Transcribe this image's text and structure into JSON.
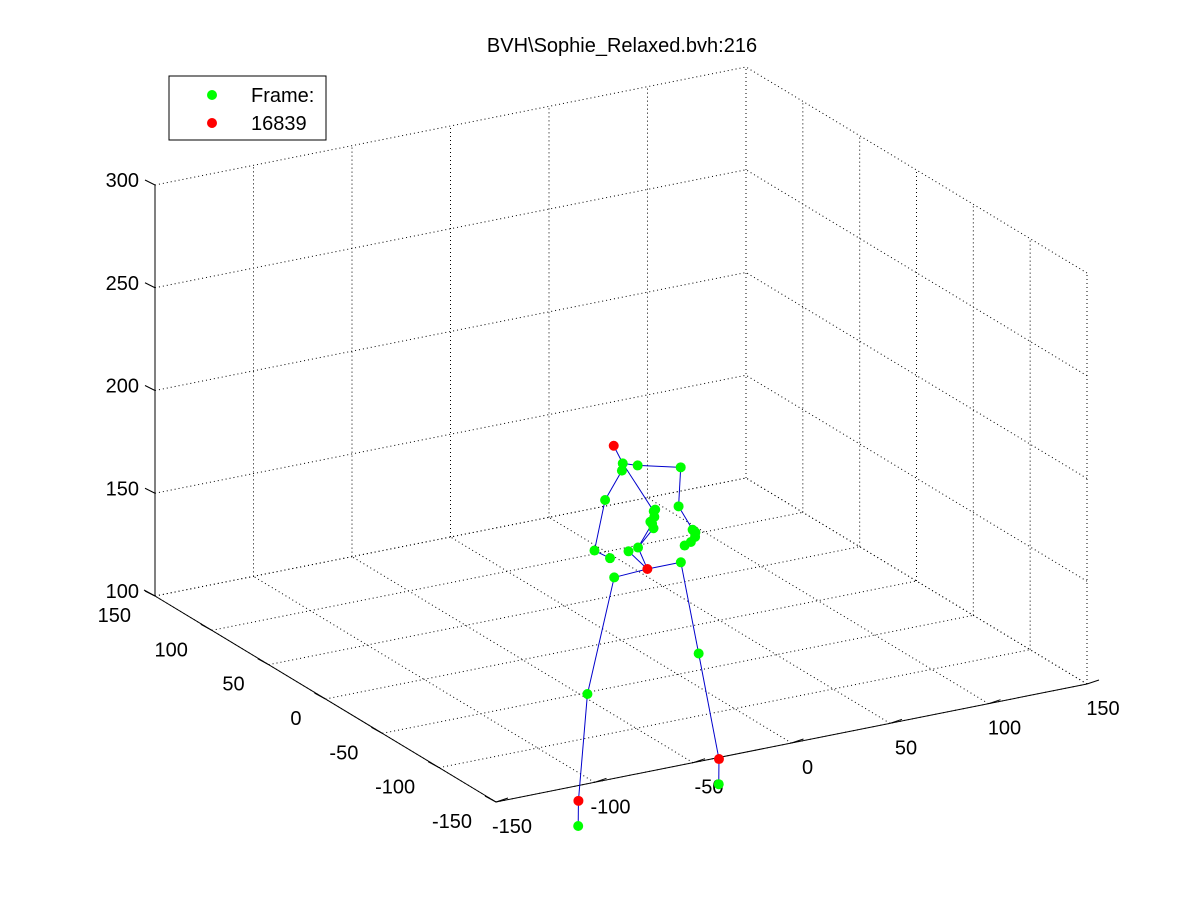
{
  "chart_data": {
    "type": "scatter",
    "subtype": "3d-skeleton",
    "title": "BVH\\Sophie_Relaxed.bvh:216",
    "grid": true,
    "box": true,
    "xlim": [
      -150,
      150
    ],
    "ylim": [
      -150,
      150
    ],
    "zlim": [
      100,
      300
    ],
    "x_ticks": [
      -150,
      -100,
      -50,
      0,
      50,
      100,
      150
    ],
    "y_ticks": [
      -150,
      -100,
      -50,
      0,
      50,
      100,
      150
    ],
    "z_ticks": [
      100,
      150,
      200,
      250,
      300
    ],
    "x_tick_labels": [
      "-150",
      "-100",
      "-50",
      "0",
      "50",
      "100",
      "150"
    ],
    "y_tick_labels": [
      "-150",
      "-100",
      "-50",
      "0",
      "50",
      "100",
      "150"
    ],
    "z_tick_labels": [
      "100",
      "150",
      "200",
      "250",
      "300"
    ],
    "legend": {
      "position": "top-left",
      "entries": [
        {
          "label": "Frame:",
          "color": "#00ff00"
        },
        {
          "label": "16839",
          "color": "#ff0000"
        }
      ]
    },
    "colors": {
      "joint": "#00ff00",
      "end_site": "#ff0000",
      "bone": "#0000cc",
      "grid": "#000000"
    },
    "joints": [
      {
        "name": "hips",
        "pos": [
          3,
          -18,
          140
        ],
        "end": true
      },
      {
        "name": "l-upleg",
        "pos": [
          -15,
          -20,
          140
        ]
      },
      {
        "name": "l-leg",
        "pos": [
          -43,
          -45,
          97
        ]
      },
      {
        "name": "l-foot",
        "pos": [
          -62,
          -70,
          57
        ],
        "end": true
      },
      {
        "name": "l-toe",
        "pos": [
          -65,
          -75,
          47
        ]
      },
      {
        "name": "r-upleg",
        "pos": [
          20,
          -18,
          140
        ]
      },
      {
        "name": "r-leg",
        "pos": [
          25,
          -25,
          97
        ]
      },
      {
        "name": "r-foot",
        "pos": [
          18,
          -55,
          57
        ],
        "end": true
      },
      {
        "name": "r-toe",
        "pos": [
          15,
          -60,
          47
        ]
      },
      {
        "name": "spine",
        "pos": [
          0,
          -15,
          150
        ]
      },
      {
        "name": "spine1",
        "pos": [
          10,
          -10,
          158
        ]
      },
      {
        "name": "spine2",
        "pos": [
          12,
          -8,
          163
        ]
      },
      {
        "name": "neck",
        "pos": [
          -2,
          -5,
          188
        ]
      },
      {
        "name": "head",
        "pos": [
          -6,
          -4,
          197
        ],
        "end": true
      },
      {
        "name": "l-shoulder",
        "pos": [
          -3,
          -6,
          185
        ]
      },
      {
        "name": "l-arm",
        "pos": [
          -15,
          -12,
          175
        ]
      },
      {
        "name": "l-forearm",
        "pos": [
          -25,
          -20,
          155
        ]
      },
      {
        "name": "l-hand",
        "pos": [
          -20,
          -25,
          152
        ]
      },
      {
        "name": "r-shoulder",
        "pos": [
          5,
          -6,
          186
        ]
      },
      {
        "name": "r-arm",
        "pos": [
          28,
          -4,
          180
        ]
      },
      {
        "name": "r-forearm",
        "pos": [
          35,
          10,
          155
        ]
      },
      {
        "name": "r-hand",
        "pos": [
          45,
          15,
          140
        ]
      },
      {
        "name": "r-finger-1",
        "pos": [
          47,
          16,
          138
        ]
      },
      {
        "name": "r-finger-2",
        "pos": [
          48,
          18,
          135
        ]
      },
      {
        "name": "r-finger-3",
        "pos": [
          47,
          20,
          132
        ]
      },
      {
        "name": "r-finger-4",
        "pos": [
          45,
          22,
          130
        ]
      },
      {
        "name": "spine-mid-1",
        "pos": [
          8,
          -12,
          160
        ]
      },
      {
        "name": "spine-mid-2",
        "pos": [
          10,
          -12,
          162
        ]
      },
      {
        "name": "spine-mid-3",
        "pos": [
          11,
          -11,
          165
        ]
      },
      {
        "name": "spine-mid-4",
        "pos": [
          9,
          -13,
          157
        ]
      },
      {
        "name": "l-hip-front",
        "pos": [
          -6,
          -17,
          150
        ]
      }
    ],
    "bones": [
      [
        "hips",
        "l-upleg"
      ],
      [
        "l-upleg",
        "l-leg"
      ],
      [
        "l-leg",
        "l-foot"
      ],
      [
        "l-foot",
        "l-toe"
      ],
      [
        "hips",
        "r-upleg"
      ],
      [
        "r-upleg",
        "r-leg"
      ],
      [
        "r-leg",
        "r-foot"
      ],
      [
        "r-foot",
        "r-toe"
      ],
      [
        "hips",
        "spine"
      ],
      [
        "spine",
        "spine1"
      ],
      [
        "spine1",
        "spine2"
      ],
      [
        "spine2",
        "neck"
      ],
      [
        "neck",
        "head"
      ],
      [
        "neck",
        "l-shoulder"
      ],
      [
        "l-shoulder",
        "l-arm"
      ],
      [
        "l-arm",
        "l-forearm"
      ],
      [
        "l-forearm",
        "l-hand"
      ],
      [
        "neck",
        "r-shoulder"
      ],
      [
        "r-shoulder",
        "r-arm"
      ],
      [
        "r-arm",
        "r-forearm"
      ],
      [
        "r-forearm",
        "r-hand"
      ],
      [
        "r-hand",
        "r-finger-1"
      ],
      [
        "r-finger-1",
        "r-finger-2"
      ],
      [
        "r-finger-2",
        "r-finger-3"
      ],
      [
        "r-finger-3",
        "r-finger-4"
      ],
      [
        "spine",
        "spine-mid-4"
      ],
      [
        "spine-mid-4",
        "spine-mid-1"
      ],
      [
        "spine-mid-1",
        "spine-mid-2"
      ],
      [
        "spine-mid-2",
        "spine-mid-3"
      ],
      [
        "hips",
        "l-hip-front"
      ]
    ]
  }
}
